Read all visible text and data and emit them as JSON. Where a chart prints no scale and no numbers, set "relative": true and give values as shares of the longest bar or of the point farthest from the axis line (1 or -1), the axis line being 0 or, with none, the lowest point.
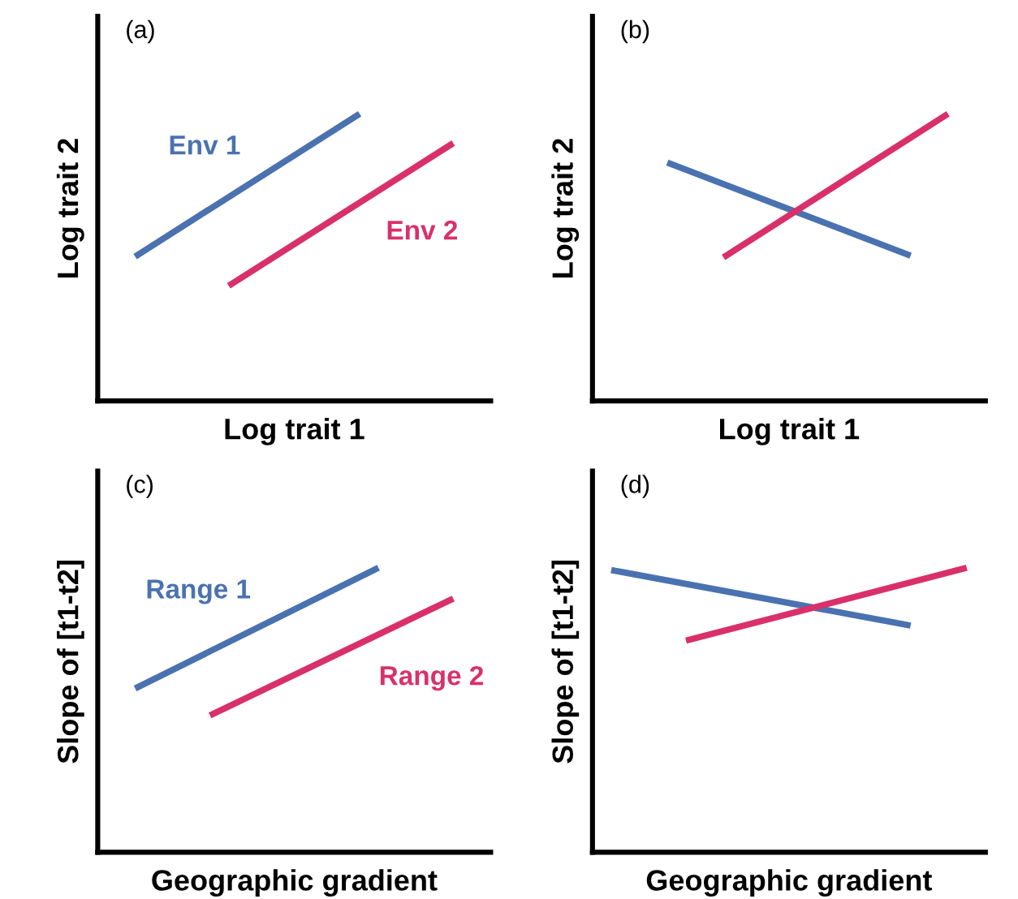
{
  "chart_data": [
    {
      "type": "line",
      "relative": true,
      "xlabel": "Log trait 1",
      "ylabel": "Log trait 2",
      "annotations": [
        "(a)"
      ],
      "marker": "none",
      "line_style": "solid",
      "categories": [
        null,
        null,
        null,
        null,
        null,
        null,
        null,
        null,
        null,
        null,
        null,
        null,
        null,
        null,
        null,
        null,
        null,
        null,
        null,
        null
      ],
      "series": [
        {
          "name": "Env 1",
          "color": "#4a72b0",
          "values": [
            null,
            0.503,
            null,
            null,
            null,
            null,
            null,
            null,
            null,
            null,
            null,
            null,
            null,
            1.0,
            null,
            null,
            null,
            null,
            null,
            null
          ]
        },
        {
          "name": "Env 2",
          "color": "#d9306a",
          "values": [
            null,
            null,
            null,
            null,
            null,
            null,
            0.401,
            null,
            null,
            null,
            null,
            null,
            null,
            null,
            null,
            null,
            null,
            null,
            0.898,
            null
          ]
        }
      ]
    },
    {
      "type": "line",
      "relative": true,
      "xlabel": "Log trait 1",
      "ylabel": "Log trait 2",
      "annotations": [
        "(b)"
      ],
      "marker": "none",
      "line_style": "solid",
      "categories": [
        null,
        null,
        null,
        null,
        null,
        null,
        null,
        null,
        null,
        null,
        null,
        null,
        null,
        null,
        null,
        null,
        null,
        null,
        null,
        null
      ],
      "series": [
        {
          "color": "#4a72b0",
          "values": [
            null,
            null,
            null,
            0.83,
            null,
            null,
            null,
            null,
            null,
            null,
            null,
            null,
            null,
            null,
            null,
            null,
            0.506,
            null,
            null,
            null
          ]
        },
        {
          "color": "#d9306a",
          "values": [
            null,
            null,
            null,
            null,
            null,
            null,
            0.5,
            null,
            null,
            null,
            null,
            null,
            null,
            null,
            null,
            null,
            null,
            null,
            1.0,
            null
          ]
        }
      ]
    },
    {
      "type": "line",
      "relative": true,
      "xlabel": "Geographic gradient",
      "ylabel": "Slope of [t1-t2]",
      "annotations": [
        "(c)"
      ],
      "marker": "none",
      "line_style": "solid",
      "categories": [
        null,
        null,
        null,
        null,
        null,
        null,
        null,
        null,
        null,
        null,
        null,
        null,
        null,
        null,
        null,
        null,
        null,
        null,
        null,
        null
      ],
      "series": [
        {
          "name": "Range 1",
          "color": "#4a72b0",
          "values": [
            null,
            0.576,
            null,
            null,
            null,
            null,
            null,
            null,
            null,
            null,
            null,
            null,
            null,
            null,
            1.0,
            null,
            null,
            null,
            null,
            null
          ]
        },
        {
          "name": "Range 2",
          "color": "#d9306a",
          "values": [
            null,
            null,
            null,
            null,
            null,
            0.481,
            null,
            null,
            null,
            null,
            null,
            null,
            null,
            null,
            null,
            null,
            null,
            null,
            0.892,
            null
          ]
        }
      ]
    },
    {
      "type": "line",
      "relative": true,
      "xlabel": "Geographic gradient",
      "ylabel": "Slope of [t1-t2]",
      "annotations": [
        "(d)"
      ],
      "marker": "none",
      "line_style": "solid",
      "categories": [
        null,
        null,
        null,
        null,
        null,
        null,
        null,
        null,
        null,
        null,
        null,
        null,
        null,
        null,
        null,
        null,
        null,
        null,
        null,
        null
      ],
      "series": [
        {
          "color": "#4a72b0",
          "values": [
            0.992,
            null,
            null,
            null,
            null,
            null,
            null,
            null,
            null,
            null,
            null,
            null,
            null,
            null,
            null,
            null,
            0.797,
            null,
            null,
            null
          ]
        },
        {
          "color": "#d9306a",
          "values": [
            null,
            null,
            null,
            null,
            0.744,
            null,
            null,
            null,
            null,
            null,
            null,
            null,
            null,
            null,
            null,
            null,
            null,
            null,
            null,
            1.0
          ]
        }
      ]
    }
  ]
}
